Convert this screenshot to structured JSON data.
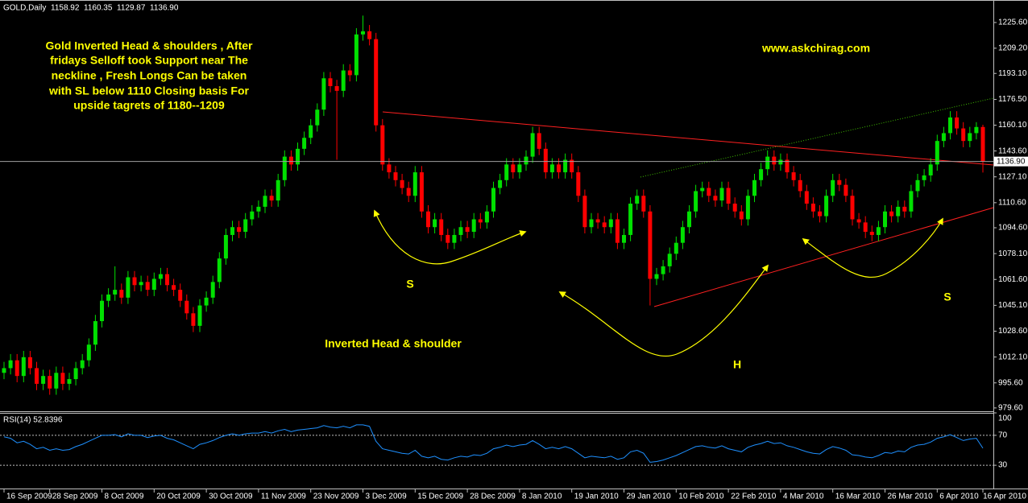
{
  "chart_data": {
    "type": "candlestick",
    "title": "GOLD,Daily",
    "last_quote": {
      "values": [
        1158.92,
        1160.35,
        1129.87,
        1136.9
      ],
      "value_labels": [
        "1158.92",
        "1160.35",
        "1129.87",
        "1136.90"
      ]
    },
    "up_color": "#00e000",
    "down_color": "#ff0000",
    "categories": [
      "16 Sep 2009",
      null,
      null,
      null,
      null,
      null,
      null,
      "28 Sep 2009",
      null,
      null,
      null,
      null,
      null,
      null,
      null,
      "8 Oct 2009",
      null,
      null,
      null,
      null,
      null,
      null,
      null,
      "20 Oct 2009",
      null,
      null,
      null,
      null,
      null,
      null,
      null,
      "30 Oct 2009",
      null,
      null,
      null,
      null,
      null,
      null,
      null,
      "11 Nov 2009",
      null,
      null,
      null,
      null,
      null,
      null,
      null,
      "23 Nov 2009",
      null,
      null,
      null,
      null,
      null,
      null,
      null,
      "3 Dec 2009",
      null,
      null,
      null,
      null,
      null,
      null,
      null,
      "15 Dec 2009",
      null,
      null,
      null,
      null,
      null,
      null,
      null,
      "28 Dec 2009",
      null,
      null,
      null,
      null,
      null,
      null,
      null,
      "8 Jan 2010",
      null,
      null,
      null,
      null,
      null,
      null,
      null,
      "19 Jan 2010",
      null,
      null,
      null,
      null,
      null,
      null,
      null,
      "29 Jan 2010",
      null,
      null,
      null,
      null,
      null,
      null,
      null,
      "10 Feb 2010",
      null,
      null,
      null,
      null,
      null,
      null,
      null,
      "22 Feb 2010",
      null,
      null,
      null,
      null,
      null,
      null,
      null,
      "4 Mar 2010",
      null,
      null,
      null,
      null,
      null,
      null,
      null,
      "16 Mar 2010",
      null,
      null,
      null,
      null,
      null,
      null,
      null,
      "26 Mar 2010",
      null,
      null,
      null,
      null,
      null,
      null,
      null,
      "6 Apr 2010",
      null,
      null,
      null,
      null,
      null,
      null,
      "16 Apr 2010"
    ],
    "open": [
      1002,
      1005,
      1010,
      1000,
      1012,
      1005,
      995,
      1000,
      992,
      1002,
      995,
      998,
      1005,
      1010,
      1020,
      1035,
      1048,
      1052,
      1055,
      1050,
      1063,
      1058,
      1060,
      1055,
      1062,
      1065,
      1058,
      1055,
      1048,
      1040,
      1032,
      1045,
      1050,
      1060,
      1075,
      1090,
      1095,
      1092,
      1100,
      1105,
      1108,
      1115,
      1112,
      1125,
      1140,
      1135,
      1145,
      1152,
      1160,
      1170,
      1190,
      1185,
      1182,
      1195,
      1192,
      1218,
      1220,
      1215,
      1160,
      1135,
      1130,
      1125,
      1120,
      1115,
      1130,
      1105,
      1095,
      1100,
      1090,
      1085,
      1090,
      1095,
      1092,
      1100,
      1098,
      1105,
      1120,
      1125,
      1135,
      1130,
      1135,
      1140,
      1155,
      1145,
      1130,
      1135,
      1130,
      1138,
      1130,
      1115,
      1095,
      1100,
      1098,
      1095,
      1100,
      1085,
      1090,
      1110,
      1115,
      1105,
      1062,
      1065,
      1070,
      1078,
      1085,
      1095,
      1105,
      1118,
      1120,
      1115,
      1112,
      1120,
      1110,
      1105,
      1100,
      1115,
      1125,
      1132,
      1140,
      1135,
      1138,
      1130,
      1125,
      1118,
      1110,
      1105,
      1102,
      1115,
      1125,
      1122,
      1115,
      1100,
      1098,
      1092,
      1090,
      1095,
      1105,
      1102,
      1108,
      1105,
      1118,
      1125,
      1128,
      1135,
      1150,
      1155,
      1165,
      1158,
      1150,
      1155,
      1158.92
    ],
    "high": [
      1009,
      1014,
      1014,
      1016,
      1016,
      1009,
      1004,
      1004,
      1006,
      1006,
      1002,
      1009,
      1014,
      1024,
      1039,
      1052,
      1056,
      1070,
      1059,
      1067,
      1067,
      1064,
      1064,
      1066,
      1069,
      1069,
      1062,
      1059,
      1052,
      1044,
      1049,
      1054,
      1064,
      1079,
      1094,
      1099,
      1099,
      1104,
      1109,
      1112,
      1119,
      1119,
      1129,
      1144,
      1144,
      1149,
      1156,
      1164,
      1174,
      1194,
      1194,
      1189,
      1199,
      1199,
      1222,
      1230,
      1224,
      1219,
      1164,
      1139,
      1134,
      1129,
      1124,
      1134,
      1134,
      1109,
      1104,
      1104,
      1094,
      1094,
      1099,
      1099,
      1104,
      1104,
      1109,
      1124,
      1129,
      1139,
      1139,
      1139,
      1144,
      1159,
      1159,
      1149,
      1139,
      1139,
      1142,
      1142,
      1134,
      1119,
      1104,
      1104,
      1102,
      1104,
      1104,
      1094,
      1114,
      1119,
      1119,
      1109,
      1069,
      1074,
      1082,
      1089,
      1099,
      1109,
      1122,
      1124,
      1124,
      1119,
      1124,
      1124,
      1114,
      1109,
      1119,
      1129,
      1136,
      1144,
      1144,
      1142,
      1142,
      1134,
      1129,
      1122,
      1114,
      1109,
      1119,
      1129,
      1129,
      1126,
      1119,
      1104,
      1102,
      1096,
      1099,
      1109,
      1109,
      1112,
      1112,
      1122,
      1129,
      1132,
      1139,
      1154,
      1159,
      1169,
      1169,
      1162,
      1159,
      1162,
      1160.35
    ],
    "low": [
      998,
      1001,
      996,
      996,
      1001,
      991,
      991,
      988,
      988,
      991,
      991,
      994,
      1001,
      1006,
      1016,
      1031,
      1044,
      1048,
      1046,
      1046,
      1054,
      1054,
      1051,
      1051,
      1058,
      1054,
      1051,
      1044,
      1036,
      1028,
      1028,
      1041,
      1046,
      1056,
      1071,
      1086,
      1088,
      1088,
      1096,
      1101,
      1104,
      1108,
      1108,
      1121,
      1131,
      1131,
      1141,
      1148,
      1156,
      1166,
      1181,
      1138,
      1178,
      1188,
      1188,
      1214,
      1211,
      1156,
      1131,
      1126,
      1121,
      1116,
      1111,
      1111,
      1101,
      1091,
      1091,
      1086,
      1081,
      1081,
      1086,
      1088,
      1088,
      1094,
      1094,
      1101,
      1116,
      1121,
      1126,
      1126,
      1131,
      1136,
      1141,
      1126,
      1126,
      1126,
      1126,
      1126,
      1111,
      1091,
      1091,
      1094,
      1091,
      1091,
      1081,
      1081,
      1086,
      1106,
      1101,
      1045,
      1058,
      1061,
      1066,
      1074,
      1081,
      1091,
      1101,
      1114,
      1111,
      1108,
      1108,
      1106,
      1101,
      1096,
      1096,
      1111,
      1121,
      1128,
      1131,
      1131,
      1126,
      1121,
      1114,
      1106,
      1101,
      1098,
      1098,
      1111,
      1118,
      1111,
      1096,
      1094,
      1088,
      1086,
      1086,
      1091,
      1098,
      1098,
      1101,
      1101,
      1114,
      1121,
      1124,
      1131,
      1146,
      1151,
      1154,
      1146,
      1146,
      1151,
      1129.87
    ],
    "close": [
      1005,
      1010,
      1000,
      1012,
      1005,
      995,
      1000,
      992,
      1002,
      995,
      998,
      1005,
      1010,
      1020,
      1035,
      1048,
      1052,
      1055,
      1050,
      1063,
      1058,
      1060,
      1055,
      1062,
      1065,
      1058,
      1055,
      1048,
      1040,
      1032,
      1045,
      1050,
      1060,
      1075,
      1090,
      1095,
      1092,
      1100,
      1105,
      1108,
      1115,
      1112,
      1125,
      1140,
      1135,
      1145,
      1152,
      1160,
      1170,
      1190,
      1185,
      1182,
      1195,
      1192,
      1218,
      1220,
      1215,
      1160,
      1135,
      1130,
      1125,
      1120,
      1115,
      1130,
      1105,
      1095,
      1100,
      1090,
      1085,
      1090,
      1095,
      1092,
      1100,
      1098,
      1105,
      1120,
      1125,
      1135,
      1130,
      1135,
      1140,
      1155,
      1145,
      1130,
      1135,
      1130,
      1138,
      1130,
      1115,
      1095,
      1100,
      1098,
      1095,
      1100,
      1085,
      1090,
      1110,
      1115,
      1105,
      1062,
      1065,
      1070,
      1078,
      1085,
      1095,
      1105,
      1118,
      1120,
      1115,
      1112,
      1120,
      1110,
      1105,
      1100,
      1115,
      1125,
      1132,
      1140,
      1135,
      1138,
      1130,
      1125,
      1118,
      1110,
      1105,
      1102,
      1115,
      1125,
      1122,
      1115,
      1100,
      1098,
      1092,
      1090,
      1095,
      1105,
      1102,
      1108,
      1105,
      1118,
      1125,
      1128,
      1135,
      1150,
      1155,
      1165,
      1158,
      1150,
      1155,
      1158.92,
      1136.9
    ],
    "ylim": [
      978,
      1237.4
    ],
    "yticks": [
      {
        "value": 1225.6,
        "label": "1225.60"
      },
      {
        "value": 1209.2,
        "label": "1209.20"
      },
      {
        "value": 1193.1,
        "label": "1193.10"
      },
      {
        "value": 1176.5,
        "label": "1176.50"
      },
      {
        "value": 1160.1,
        "label": "1160.10"
      },
      {
        "value": 1143.6,
        "label": "1143.60"
      },
      {
        "value": 1127.1,
        "label": "1127.10"
      },
      {
        "value": 1110.6,
        "label": "1110.60"
      },
      {
        "value": 1094.6,
        "label": "1094.60"
      },
      {
        "value": 1078.1,
        "label": "1078.10"
      },
      {
        "value": 1061.6,
        "label": "1061.60"
      },
      {
        "value": 1045.1,
        "label": "1045.10"
      },
      {
        "value": 1028.6,
        "label": "1028.60"
      },
      {
        "value": 1012.1,
        "label": "1012.10"
      },
      {
        "value": 995.6,
        "label": "995.60"
      },
      {
        "value": 979.6,
        "label": "979.60"
      }
    ],
    "note_lines": [
      "Gold Inverted Head & shoulders , After",
      "fridays Selloff  took Support near The",
      "neckline , Fresh Longs Can be taken",
      "with SL below 1110 Closing basis For",
      "upside tagrets of 1180--1209"
    ],
    "website": "www.askchirag.com",
    "pattern_label": "Inverted Head & shoulder",
    "left_shoulder": "S",
    "head": "H",
    "right_shoulder": "S",
    "rsi": {
      "label": "RSI(14) 52.8396",
      "color": "#1e90ff",
      "ylim": [
        0,
        100
      ],
      "yticks": [
        100,
        70,
        30
      ],
      "levels": [
        70,
        30
      ],
      "values": [
        68,
        66,
        60,
        62,
        58,
        52,
        54,
        50,
        52,
        50,
        51,
        55,
        58,
        62,
        66,
        70,
        70,
        71,
        68,
        72,
        70,
        70,
        67,
        69,
        70,
        66,
        64,
        60,
        56,
        52,
        58,
        60,
        63,
        67,
        70,
        72,
        70,
        72,
        73,
        73,
        75,
        73,
        76,
        78,
        75,
        77,
        78,
        79,
        80,
        83,
        81,
        80,
        82,
        80,
        84,
        84,
        82,
        62,
        52,
        50,
        48,
        46,
        45,
        50,
        42,
        40,
        42,
        38,
        37,
        40,
        42,
        41,
        44,
        43,
        46,
        52,
        54,
        57,
        55,
        57,
        58,
        63,
        58,
        52,
        54,
        52,
        55,
        52,
        46,
        40,
        42,
        41,
        40,
        42,
        38,
        40,
        48,
        50,
        46,
        34,
        35,
        37,
        40,
        43,
        47,
        51,
        55,
        56,
        54,
        53,
        56,
        52,
        50,
        48,
        54,
        57,
        59,
        62,
        59,
        60,
        56,
        54,
        51,
        48,
        46,
        45,
        51,
        55,
        53,
        50,
        44,
        43,
        41,
        40,
        43,
        47,
        46,
        49,
        48,
        54,
        57,
        58,
        61,
        66,
        68,
        71,
        67,
        63,
        65,
        66,
        52.8396
      ]
    }
  }
}
